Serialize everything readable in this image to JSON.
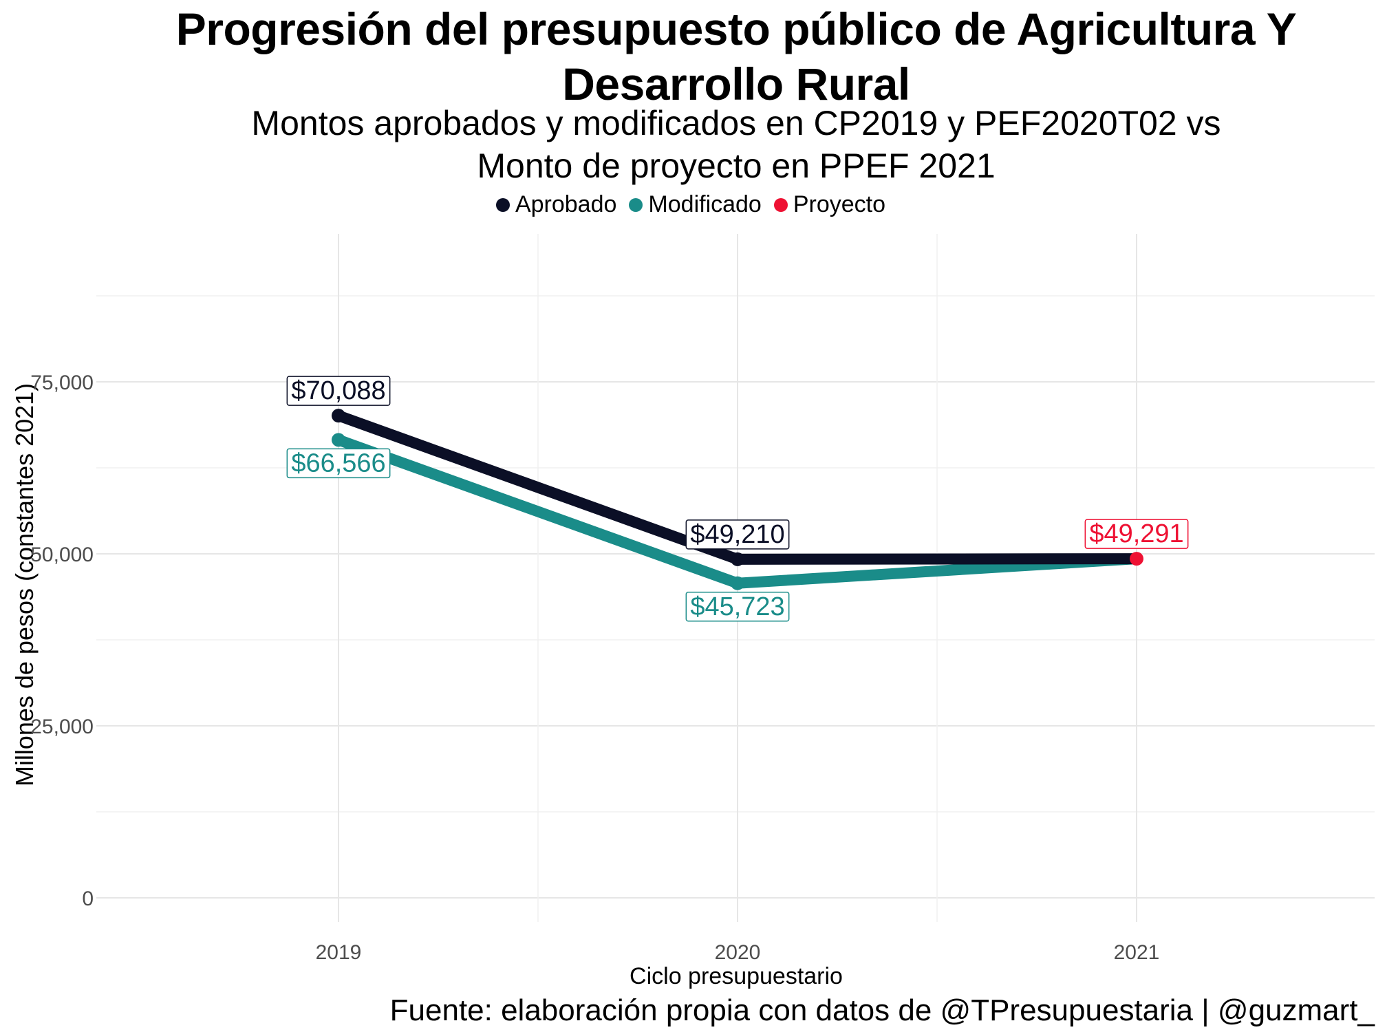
{
  "chart_data": {
    "type": "line",
    "title": "Progresión del presupuesto público de Agricultura Y Desarrollo Rural",
    "subtitle_lines": [
      "Montos aprobados y modificados en CP2019 y PEF2020T02 vs",
      "Monto de proyecto en PPEF 2021"
    ],
    "xlabel": "Ciclo presupuestario",
    "ylabel": "Millones de pesos (constantes 2021)",
    "caption": "Fuente: elaboración propia con datos de @TPresupuestaria | @guzmart_",
    "categories": [
      "2019",
      "2020",
      "2021"
    ],
    "y_ticks": [
      0,
      25000,
      50000,
      75000
    ],
    "y_tick_labels": [
      "0",
      "25,000",
      "50,000",
      "75,000"
    ],
    "ylim": [
      -3500,
      96500
    ],
    "grid": true,
    "legend_position": "top",
    "legend": [
      {
        "name": "Aprobado",
        "color": "#0b0f26"
      },
      {
        "name": "Modificado",
        "color": "#1a8c89"
      },
      {
        "name": "Proyecto",
        "color": "#ee1133"
      }
    ],
    "series": [
      {
        "name": "Aprobado",
        "color": "#0b0f26",
        "values": [
          70088,
          49210,
          49291
        ],
        "labels": [
          "$70,088",
          "$49,210",
          null
        ]
      },
      {
        "name": "Modificado",
        "color": "#1a8c89",
        "values": [
          66566,
          45723,
          49291
        ],
        "labels": [
          "$66,566",
          "$45,723",
          null
        ]
      },
      {
        "name": "Proyecto",
        "color": "#ee1133",
        "values": [
          null,
          null,
          49291
        ],
        "labels": [
          null,
          null,
          "$49,291"
        ]
      }
    ]
  }
}
